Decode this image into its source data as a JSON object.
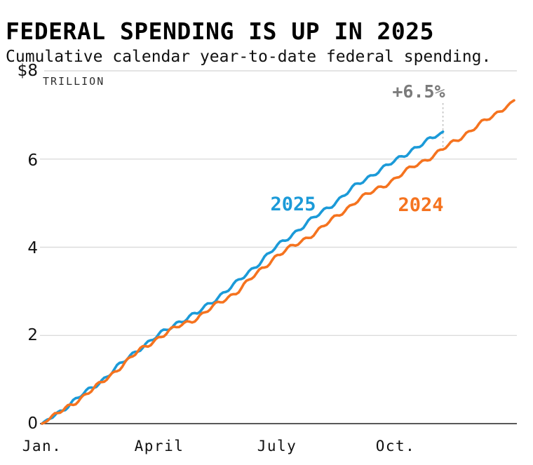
{
  "header": {
    "title": "FEDERAL SPENDING IS UP IN 2025",
    "subtitle": "Cumulative calendar year-to-date federal spending."
  },
  "chart_data": {
    "type": "line",
    "title": "FEDERAL SPENDING IS UP IN 2025",
    "subtitle": "Cumulative calendar year-to-date federal spending.",
    "unit_label": "TRILLION",
    "y_unit": "trillion USD",
    "x_unit": "day_of_year",
    "ylim": [
      0,
      8
    ],
    "yticks": [
      0,
      2,
      4,
      6,
      8
    ],
    "ytick_labels_top_to_bottom": [
      "$8",
      "6",
      "4",
      "2",
      "0"
    ],
    "xlim_days": [
      0,
      365
    ],
    "x_ticks": [
      {
        "label": "Jan.",
        "day": 0
      },
      {
        "label": "April",
        "day": 90
      },
      {
        "label": "July",
        "day": 181
      },
      {
        "label": "Oct.",
        "day": 273
      }
    ],
    "grid": "horizontal",
    "legend": "inline-labels",
    "annotation": {
      "text": "+6.5%",
      "color": "#7B7B7B",
      "at_day": 310
    },
    "series": [
      {
        "name": "2025",
        "color": "#1B9AD8",
        "points": [
          [
            0,
            0
          ],
          [
            15,
            0.3
          ],
          [
            31,
            0.65
          ],
          [
            45,
            0.95
          ],
          [
            59,
            1.3
          ],
          [
            75,
            1.7
          ],
          [
            90,
            2.0
          ],
          [
            105,
            2.3
          ],
          [
            120,
            2.5
          ],
          [
            135,
            2.85
          ],
          [
            151,
            3.2
          ],
          [
            166,
            3.6
          ],
          [
            181,
            4.0
          ],
          [
            196,
            4.35
          ],
          [
            212,
            4.7
          ],
          [
            228,
            5.05
          ],
          [
            243,
            5.4
          ],
          [
            258,
            5.7
          ],
          [
            273,
            5.95
          ],
          [
            288,
            6.25
          ],
          [
            304,
            6.5
          ],
          [
            310,
            6.62
          ]
        ]
      },
      {
        "name": "2024",
        "color": "#F5731F",
        "points": [
          [
            0,
            0
          ],
          [
            15,
            0.28
          ],
          [
            31,
            0.6
          ],
          [
            45,
            0.9
          ],
          [
            59,
            1.25
          ],
          [
            75,
            1.65
          ],
          [
            90,
            1.95
          ],
          [
            105,
            2.2
          ],
          [
            120,
            2.4
          ],
          [
            135,
            2.7
          ],
          [
            151,
            3.0
          ],
          [
            166,
            3.4
          ],
          [
            181,
            3.8
          ],
          [
            196,
            4.05
          ],
          [
            212,
            4.35
          ],
          [
            228,
            4.7
          ],
          [
            243,
            5.05
          ],
          [
            258,
            5.3
          ],
          [
            273,
            5.55
          ],
          [
            288,
            5.85
          ],
          [
            304,
            6.1
          ],
          [
            319,
            6.4
          ],
          [
            334,
            6.7
          ],
          [
            350,
            7.0
          ],
          [
            365,
            7.33
          ]
        ]
      }
    ]
  }
}
